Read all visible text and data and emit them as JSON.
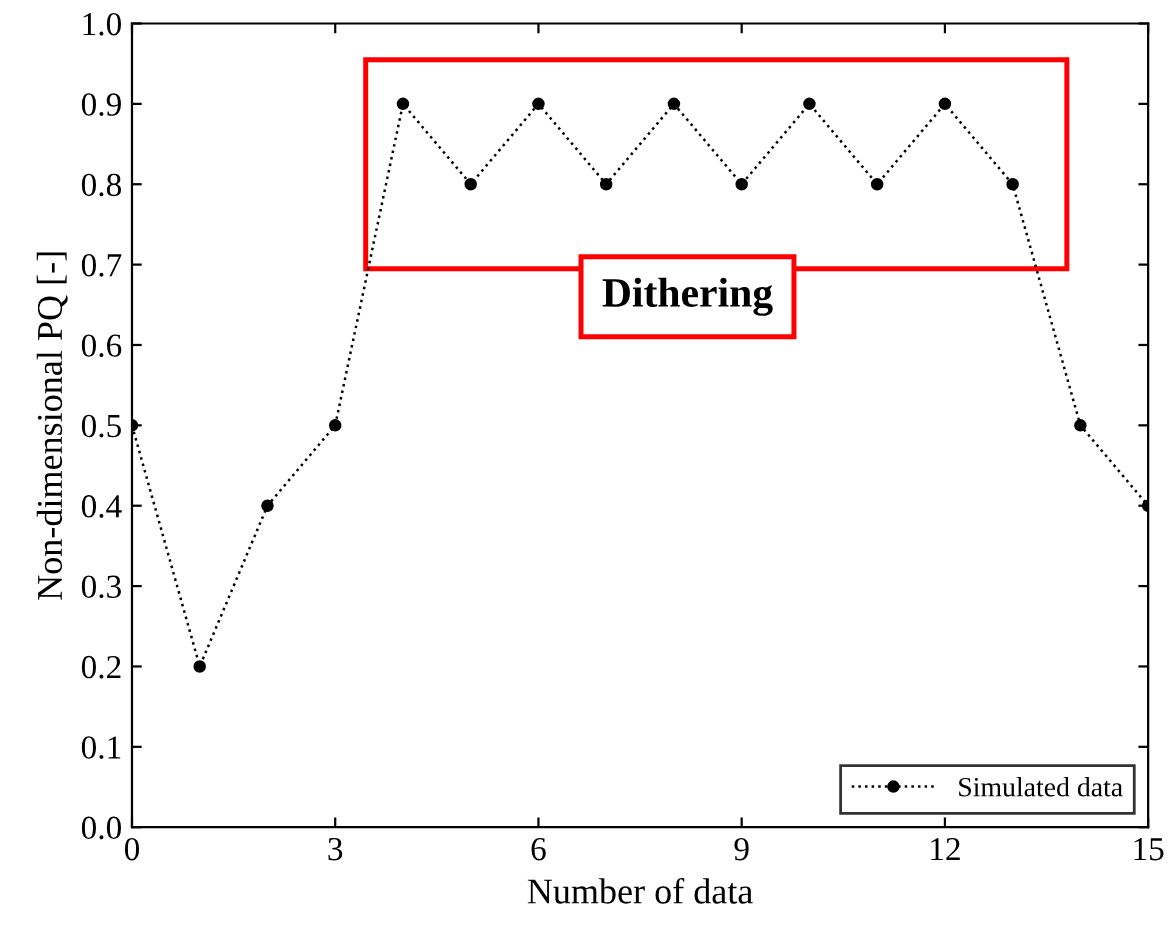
{
  "chart_data": {
    "type": "line",
    "xlabel": "Number of data",
    "ylabel": "Non-dimensional PQ [-]",
    "x": [
      0,
      1,
      2,
      3,
      4,
      5,
      6,
      7,
      8,
      9,
      10,
      11,
      12,
      13,
      14,
      15
    ],
    "series": [
      {
        "name": "Simulated data",
        "color": "#000000",
        "values": [
          0.5,
          0.2,
          0.4,
          0.5,
          0.9,
          0.8,
          0.9,
          0.8,
          0.9,
          0.8,
          0.9,
          0.8,
          0.9,
          0.8,
          0.5,
          0.4
        ]
      }
    ],
    "xlim": [
      0,
      15
    ],
    "xticks": [
      0,
      3,
      6,
      9,
      12,
      15
    ],
    "ylim": [
      0,
      1
    ],
    "yticks": [
      {
        "value": 0,
        "label": "0.0"
      },
      0.1,
      0.2,
      0.3,
      0.4,
      0.5,
      0.6,
      0.7,
      0.8,
      0.9,
      {
        "value": 1,
        "label": "1.0"
      }
    ],
    "annotations": [
      "Dithering"
    ],
    "legend": "bottom right",
    "marker": "circle",
    "line_style": "dotted",
    "grid": false
  }
}
